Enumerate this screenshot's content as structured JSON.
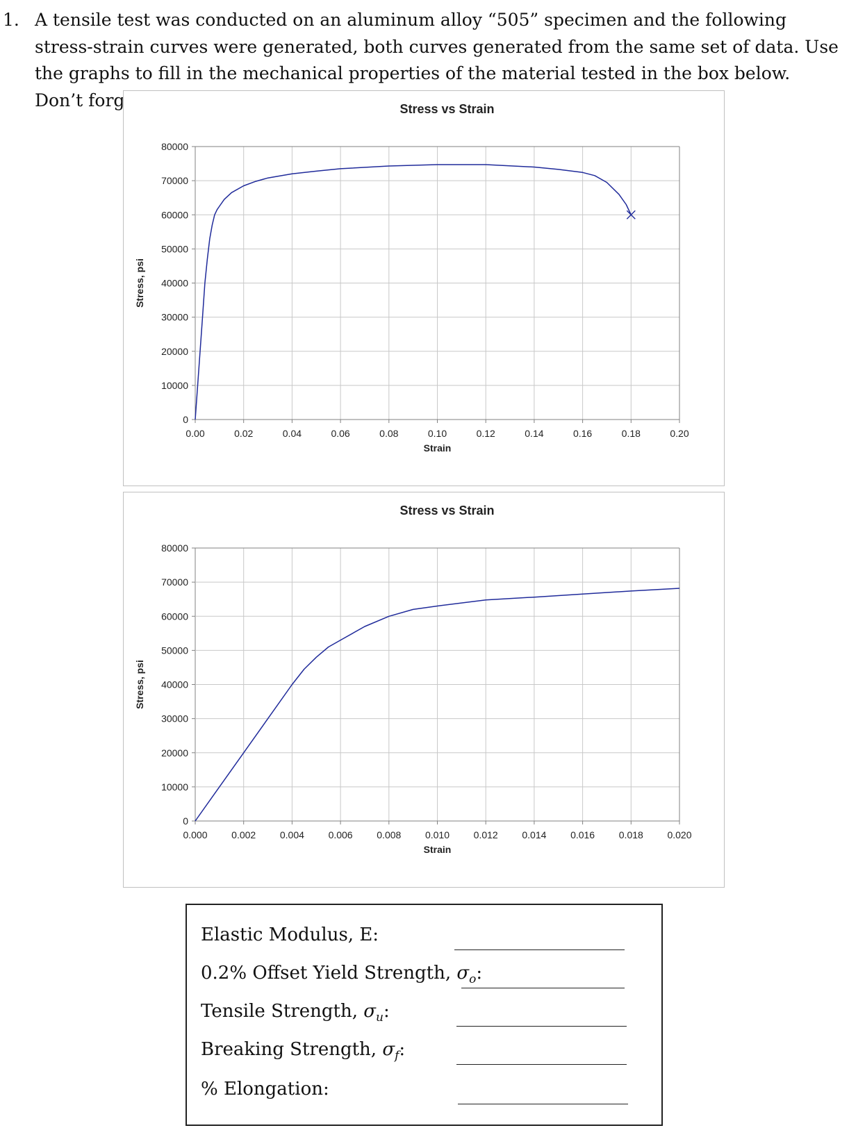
{
  "question": {
    "number": "1.",
    "text": "A tensile test was conducted on an aluminum alloy “505” specimen and the following stress-strain curves were generated, both curves generated from the same set of data. Use the graphs to fill in the mechanical properties of the material tested in the box below. Don’t forget units!"
  },
  "chart_data": [
    {
      "type": "line",
      "title": "Stress vs Strain",
      "xlabel": "Strain",
      "ylabel": "Stress, psi",
      "xlim": [
        0,
        0.2
      ],
      "ylim": [
        0,
        80000
      ],
      "xticks": [
        "0.00",
        "0.02",
        "0.04",
        "0.06",
        "0.08",
        "0.10",
        "0.12",
        "0.14",
        "0.16",
        "0.18",
        "0.20"
      ],
      "yticks": [
        "0",
        "10000",
        "20000",
        "30000",
        "40000",
        "50000",
        "60000",
        "70000",
        "80000"
      ],
      "grid": true,
      "line_color": "#1f2a9a",
      "series": [
        {
          "x": [
            0,
            0.001,
            0.002,
            0.003,
            0.004,
            0.005,
            0.006,
            0.007,
            0.008,
            0.009,
            0.01,
            0.012,
            0.015,
            0.02,
            0.025,
            0.03,
            0.04,
            0.05,
            0.06,
            0.08,
            0.1,
            0.12,
            0.14,
            0.15,
            0.16,
            0.165,
            0.17,
            0.175,
            0.178,
            0.18
          ],
          "y": [
            0,
            10000,
            20000,
            30000,
            40000,
            47000,
            53000,
            57000,
            60000,
            61500,
            62500,
            64500,
            66500,
            68500,
            69800,
            70800,
            72000,
            72800,
            73500,
            74300,
            74700,
            74700,
            74000,
            73300,
            72400,
            71500,
            69500,
            66000,
            63000,
            60000
          ]
        }
      ],
      "marker": {
        "x": 0.18,
        "y": 60000,
        "symbol": "x"
      }
    },
    {
      "type": "line",
      "title": "Stress vs Strain",
      "xlabel": "Strain",
      "ylabel": "Stress, psi",
      "xlim": [
        0,
        0.02
      ],
      "ylim": [
        0,
        80000
      ],
      "xticks": [
        "0.000",
        "0.002",
        "0.004",
        "0.006",
        "0.008",
        "0.010",
        "0.012",
        "0.014",
        "0.016",
        "0.018",
        "0.020"
      ],
      "yticks": [
        "0",
        "10000",
        "20000",
        "30000",
        "40000",
        "50000",
        "60000",
        "70000",
        "80000"
      ],
      "grid": true,
      "line_color": "#1f2a9a",
      "series": [
        {
          "x": [
            0,
            0.001,
            0.002,
            0.003,
            0.004,
            0.0045,
            0.005,
            0.0055,
            0.006,
            0.007,
            0.008,
            0.009,
            0.01,
            0.012,
            0.014,
            0.016,
            0.018,
            0.02
          ],
          "y": [
            0,
            10000,
            20000,
            30000,
            40000,
            44500,
            48000,
            51000,
            53000,
            57000,
            60000,
            62000,
            63000,
            64800,
            65600,
            66500,
            67400,
            68200
          ]
        }
      ]
    }
  ],
  "answers": {
    "rows": [
      {
        "label": "Elastic Modulus, E:"
      },
      {
        "label": "0.2% Offset Yield Strength, ",
        "symbol": "σ",
        "sub": "o",
        "suffix": ":"
      },
      {
        "label": "Tensile Strength, ",
        "symbol": "σ",
        "sub": "u",
        "suffix": ":"
      },
      {
        "label": "Breaking Strength, ",
        "symbol": "σ",
        "sub": "f",
        "suffix": ":"
      },
      {
        "label": "% Elongation:"
      }
    ]
  }
}
